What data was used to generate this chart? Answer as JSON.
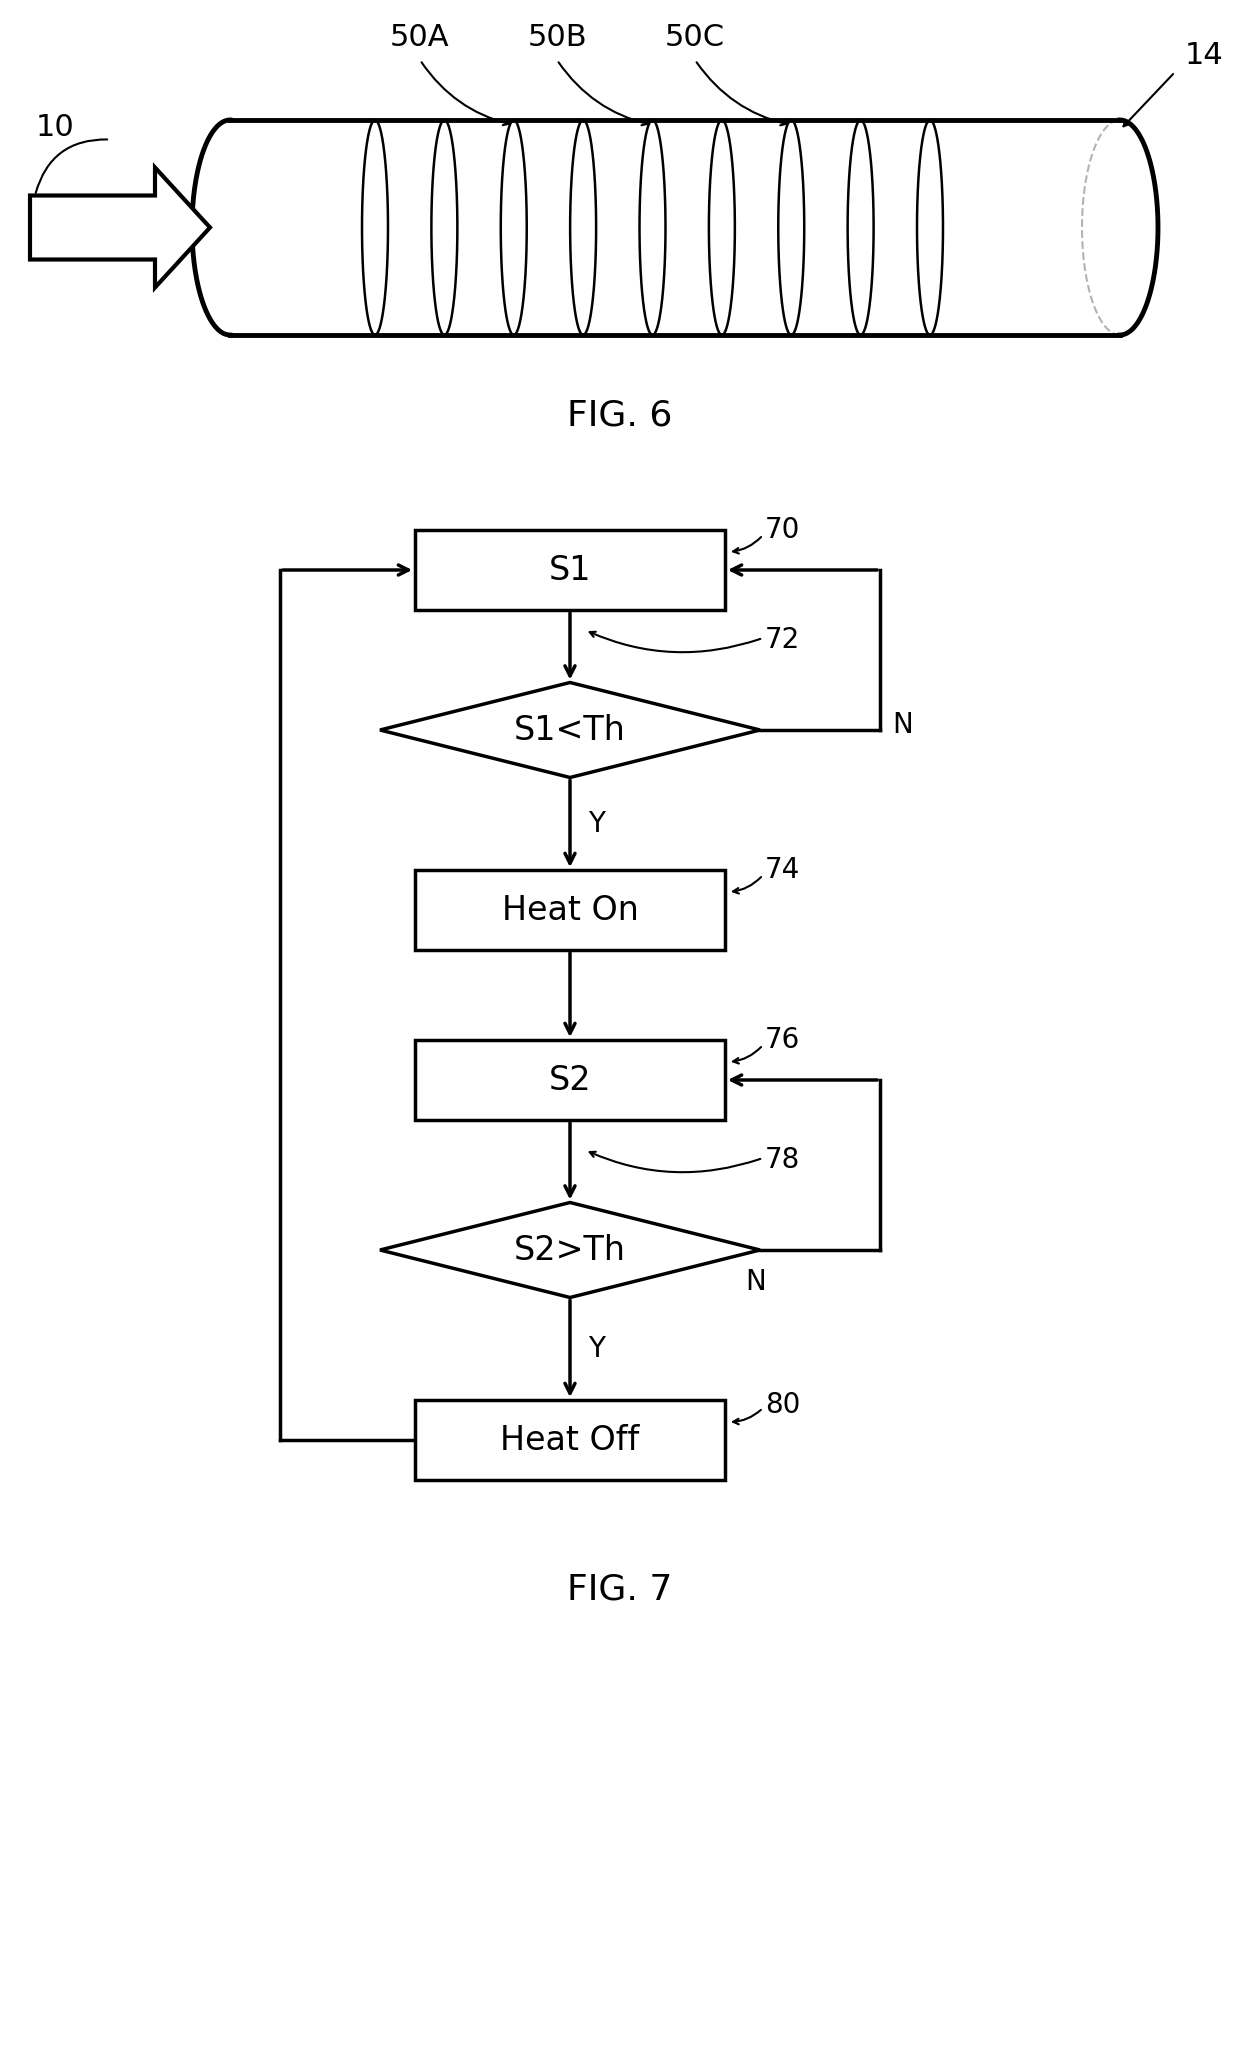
{
  "bg_color": "#ffffff",
  "fig_width": 12.4,
  "fig_height": 20.65,
  "fig6_label": "FIG. 6",
  "fig7_label": "FIG. 7",
  "label_10": "10",
  "label_14": "14",
  "label_50A": "50A",
  "label_50B": "50B",
  "label_50C": "50C",
  "label_70": "70",
  "label_72": "72",
  "label_74": "74",
  "label_76": "76",
  "label_78": "78",
  "label_80": "80",
  "box_S1": "S1",
  "box_HeatOn": "Heat On",
  "box_S2": "S2",
  "box_HeatOff": "Heat Off",
  "diamond_S1Th": "S1<Th",
  "diamond_S2Th": "S2>Th",
  "line_color": "#000000",
  "line_width": 2.5,
  "thin_lw": 1.5
}
